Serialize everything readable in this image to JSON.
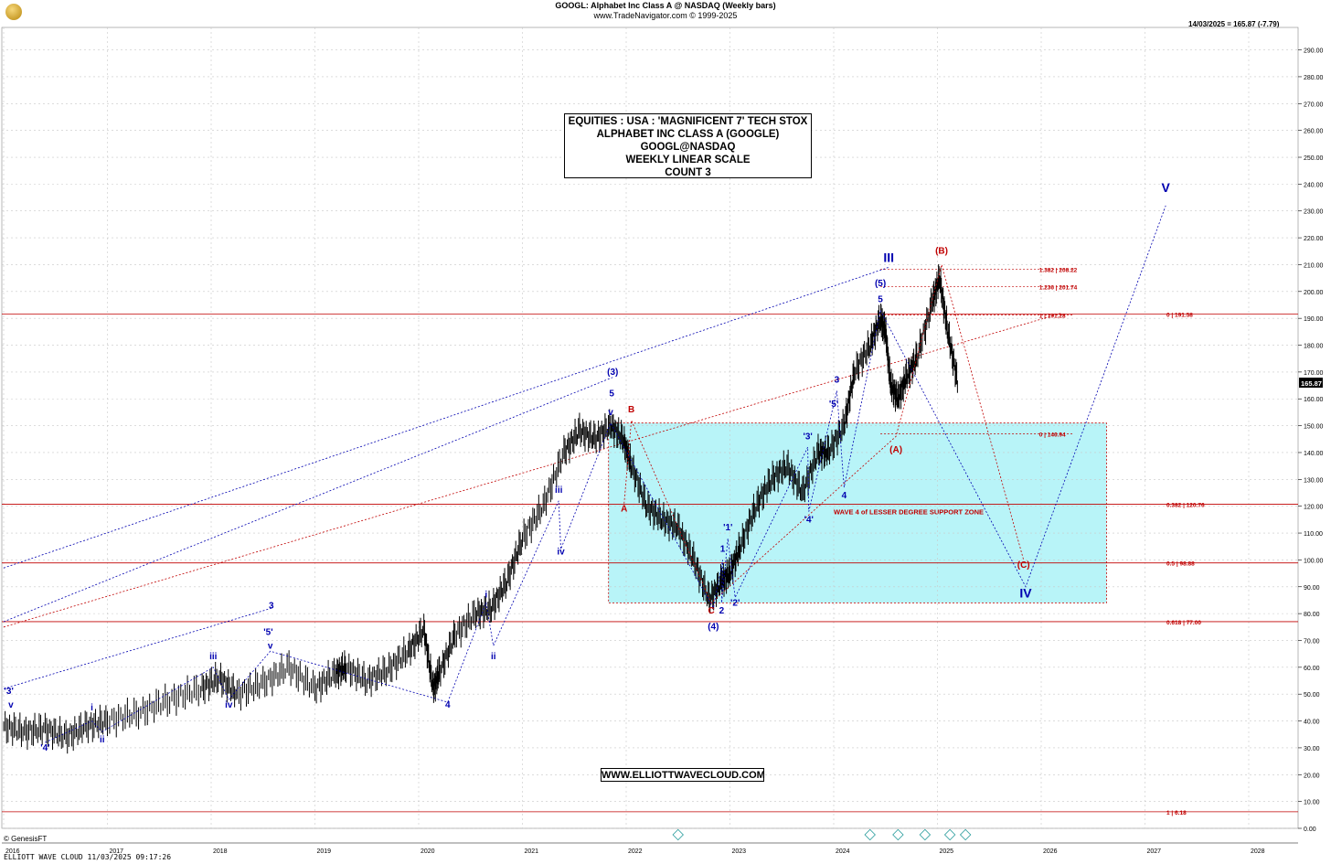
{
  "header": {
    "line1": "GOOGL:  Alphabet Inc Class A @ NASDAQ  (Weekly bars)",
    "line2": "www.TradeNavigator.com © 1999-2025"
  },
  "quote": "14/03/2025 = 165.87 (-7.79)",
  "last_price_tag": "165.87",
  "title_box": [
    "EQUITIES : USA : 'MAGNIFICENT 7' TECH STOX",
    "ALPHABET INC CLASS A (GOOGLE)",
    "GOOGL@NASDAQ",
    "WEEKLY LINEAR SCALE",
    "COUNT 3"
  ],
  "site": "WWW.ELLIOTTWAVECLOUD.COM",
  "copyright": "© GenesisFT",
  "footer": "ELLIOTT WAVE CLOUD   11/03/2025 09:17:26",
  "chart_data": {
    "type": "line",
    "x_axis_years": [
      "2016",
      "2017",
      "2018",
      "2019",
      "2020",
      "2021",
      "2022",
      "2023",
      "2024",
      "2025",
      "2026",
      "2027",
      "2028"
    ],
    "y_ticks": [
      "0.00",
      "10.00",
      "20.00",
      "30.00",
      "40.00",
      "50.00",
      "60.00",
      "70.00",
      "80.00",
      "90.00",
      "100.00",
      "110.00",
      "120.00",
      "130.00",
      "140.00",
      "150.00",
      "160.00",
      "170.00",
      "180.00",
      "190.00",
      "200.00",
      "210.00",
      "220.00",
      "230.00",
      "240.00",
      "250.00",
      "260.00",
      "270.00",
      "280.00",
      "290.00"
    ],
    "ylim": [
      0,
      293
    ],
    "series": [
      {
        "x": [
          2016.0,
          2016.2,
          2016.4,
          2016.6,
          2016.8,
          2017.0,
          2017.3,
          2017.6,
          2017.9,
          2018.08,
          2018.25,
          2018.5,
          2018.75,
          2019.0,
          2019.2,
          2019.3,
          2019.5,
          2019.7,
          2019.9,
          2020.05,
          2020.14,
          2020.2,
          2020.35,
          2020.55,
          2020.7,
          2020.85,
          2021.0,
          2021.2,
          2021.4,
          2021.55,
          2021.7,
          2021.85,
          2021.97,
          2022.05,
          2022.2,
          2022.35,
          2022.5,
          2022.65,
          2022.8,
          2022.92,
          2023.0,
          2023.1,
          2023.25,
          2023.4,
          2023.55,
          2023.7,
          2023.85,
          2023.95,
          2024.1,
          2024.2,
          2024.35,
          2024.45,
          2024.5,
          2024.55,
          2024.62,
          2024.7,
          2024.8,
          2024.95,
          2025.02,
          2025.1,
          2025.2
        ],
        "y": [
          38,
          36,
          37,
          34,
          38,
          40,
          43,
          48,
          52,
          56,
          50,
          54,
          60,
          52,
          58,
          60,
          55,
          59,
          66,
          74,
          52,
          58,
          72,
          80,
          82,
          92,
          108,
          120,
          140,
          148,
          145,
          150,
          145,
          135,
          120,
          115,
          112,
          100,
          85,
          92,
          95,
          105,
          120,
          130,
          135,
          125,
          140,
          140,
          150,
          170,
          180,
          190,
          185,
          165,
          160,
          168,
          175,
          196,
          205,
          185,
          165
        ]
      }
    ],
    "horizontal_levels": [
      {
        "label": "0 | 191.58",
        "value": 191.58,
        "color": "#c00000"
      },
      {
        "label": "0.382 | 120.76",
        "value": 120.76,
        "color": "#c00000"
      },
      {
        "label": "0.5 | 98.88",
        "value": 98.88,
        "color": "#c00000"
      },
      {
        "label": "0.618 | 77.00",
        "value": 77.0,
        "color": "#c00000"
      },
      {
        "label": "1 | 6.18",
        "value": 6.18,
        "color": "#c00000"
      }
    ],
    "projection_levels": [
      {
        "label": "1.382 | 208.22",
        "value": 208.22
      },
      {
        "label": "1.236 | 201.74",
        "value": 201.74
      },
      {
        "label": "1 | 191.28",
        "value": 191.28
      },
      {
        "label": "0 | 146.94",
        "value": 146.94
      }
    ],
    "support_zone": {
      "label": "WAVE 4 of LESSER DEGREE SUPPORT ZONE",
      "from": 2021.83,
      "to": 2026.63,
      "low": 84,
      "high": 151,
      "color": "#b8f4f8"
    },
    "blue_labels": [
      {
        "text": "'3'",
        "x": 2016.05,
        "y": 50
      },
      {
        "text": "v",
        "x": 2016.07,
        "y": 45
      },
      {
        "text": "'4'",
        "x": 2016.4,
        "y": 29
      },
      {
        "text": "i",
        "x": 2016.85,
        "y": 44
      },
      {
        "text": "ii",
        "x": 2016.95,
        "y": 32
      },
      {
        "text": "iii",
        "x": 2018.02,
        "y": 63
      },
      {
        "text": "iv",
        "x": 2018.17,
        "y": 45
      },
      {
        "text": "'5'",
        "x": 2018.55,
        "y": 72
      },
      {
        "text": "v",
        "x": 2018.57,
        "y": 67
      },
      {
        "text": "3",
        "x": 2018.58,
        "y": 82
      },
      {
        "text": "4",
        "x": 2020.28,
        "y": 45
      },
      {
        "text": "i",
        "x": 2020.65,
        "y": 86
      },
      {
        "text": "ii",
        "x": 2020.72,
        "y": 63
      },
      {
        "text": "iii",
        "x": 2021.35,
        "y": 125
      },
      {
        "text": "iv",
        "x": 2021.37,
        "y": 102
      },
      {
        "text": "(3)",
        "x": 2021.87,
        "y": 169
      },
      {
        "text": "5",
        "x": 2021.86,
        "y": 161
      },
      {
        "text": "v",
        "x": 2021.85,
        "y": 154
      },
      {
        "text": "(4)",
        "x": 2022.84,
        "y": 74
      },
      {
        "text": "1",
        "x": 2022.93,
        "y": 103
      },
      {
        "text": "2",
        "x": 2022.92,
        "y": 80
      },
      {
        "text": "'1'",
        "x": 2022.98,
        "y": 111
      },
      {
        "text": "'2'",
        "x": 2023.05,
        "y": 83
      },
      {
        "text": "'3'",
        "x": 2023.75,
        "y": 145
      },
      {
        "text": "'4'",
        "x": 2023.76,
        "y": 114
      },
      {
        "text": "3",
        "x": 2024.03,
        "y": 166
      },
      {
        "text": "'5'",
        "x": 2024.0,
        "y": 157
      },
      {
        "text": "4",
        "x": 2024.1,
        "y": 123
      },
      {
        "text": "(5)",
        "x": 2024.45,
        "y": 202
      },
      {
        "text": "5",
        "x": 2024.45,
        "y": 196
      },
      {
        "text": "III",
        "x": 2024.53,
        "y": 211
      },
      {
        "text": "IV",
        "x": 2025.85,
        "y": 86
      },
      {
        "text": "V",
        "x": 2027.2,
        "y": 237
      }
    ],
    "red_labels": [
      {
        "text": "B",
        "x": 2022.05,
        "y": 155
      },
      {
        "text": "A",
        "x": 2021.98,
        "y": 118
      },
      {
        "text": "C",
        "x": 2022.82,
        "y": 80
      },
      {
        "text": "(A)",
        "x": 2024.6,
        "y": 140
      },
      {
        "text": "(B)",
        "x": 2025.04,
        "y": 214
      },
      {
        "text": "(C)",
        "x": 2025.83,
        "y": 97
      }
    ],
    "colors": {
      "price": "#000000",
      "wave_blue": "#0000b0",
      "wave_red": "#c00000",
      "grid": "#c8c8c8"
    }
  }
}
